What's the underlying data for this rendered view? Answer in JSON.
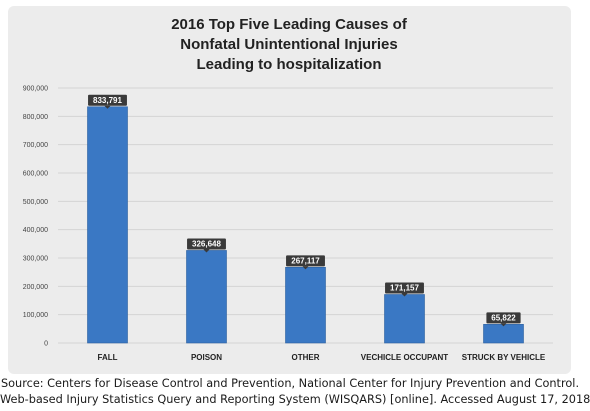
{
  "chart_data": {
    "type": "bar",
    "title_lines": [
      "2016 Top Five Leading Causes of",
      "Nonfatal Unintentional Injuries",
      "Leading to hospitalization"
    ],
    "categories": [
      "FALL",
      "POISON",
      "OTHER",
      "VECHICLE OCCUPANT",
      "STRUCK BY VEHICLE"
    ],
    "values": [
      833791,
      326648,
      267117,
      171157,
      65822
    ],
    "data_labels": [
      "833,791",
      "326,648",
      "267,117",
      "171,157",
      "65,822"
    ],
    "y_ticks": [
      "0",
      "100,000",
      "200,000",
      "300,000",
      "400,000",
      "500,000",
      "600,000",
      "700,000",
      "800,000",
      "900,000"
    ],
    "ylim": [
      0,
      900000
    ],
    "xlabel": "",
    "ylabel": "",
    "grid": true,
    "legend": "none",
    "colors": {
      "bar": "#3a78c4",
      "bar_edge": "#2c5f9e",
      "label_box": "#3a3a3a",
      "grid": "#d4d4d4",
      "panel": "#ececec"
    }
  },
  "source": {
    "line1": "Source: Centers for Disease Control and Prevention, National Center for Injury Prevention and Control.",
    "line2": "Web-based Injury Statistics Query and Reporting System (WISQARS) [online]. Accessed August 17, 2018"
  }
}
